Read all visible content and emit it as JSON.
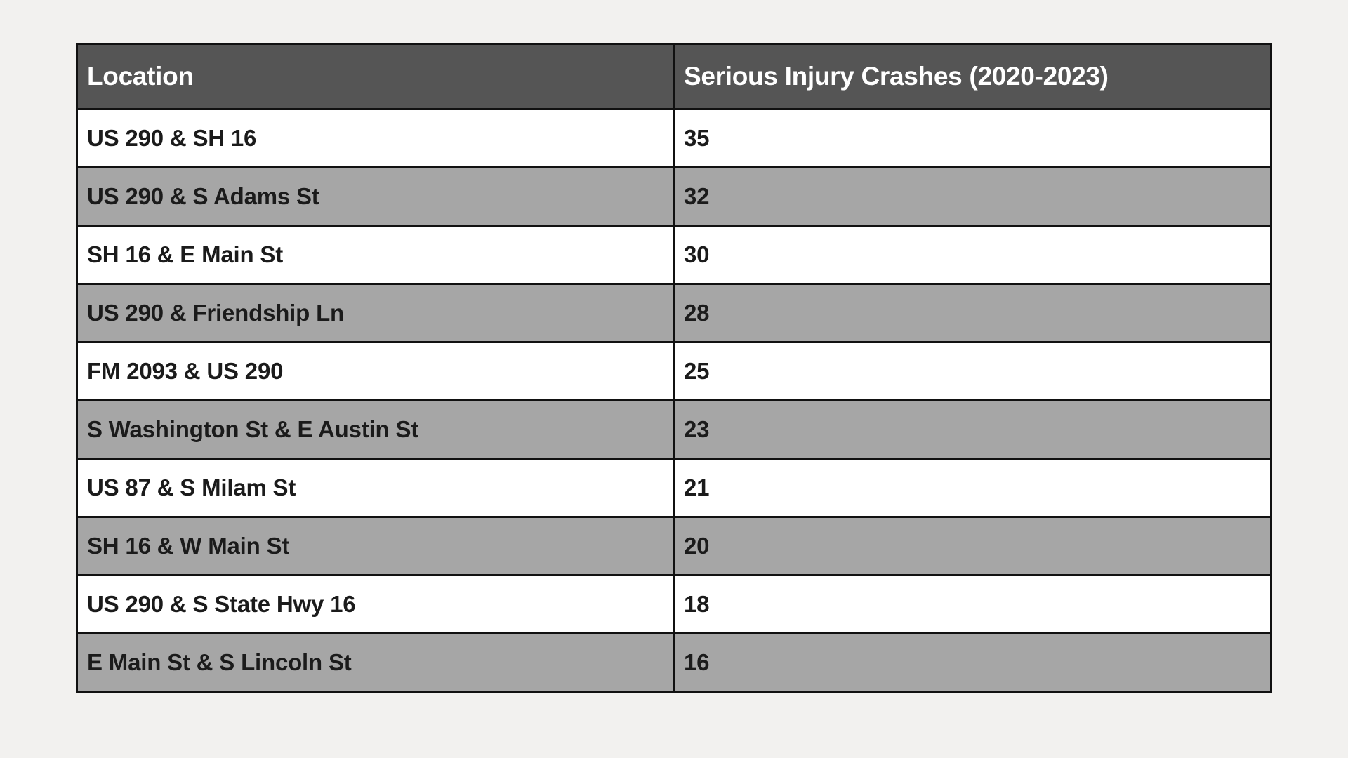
{
  "table": {
    "headers": {
      "location": "Location",
      "crashes": "Serious Injury Crashes (2020-2023)"
    },
    "rows": [
      {
        "location": "US 290 & SH 16",
        "crashes": "35"
      },
      {
        "location": "US 290 & S Adams St",
        "crashes": "32"
      },
      {
        "location": "SH 16 & E Main St",
        "crashes": "30"
      },
      {
        "location": "US 290 & Friendship Ln",
        "crashes": "28"
      },
      {
        "location": "FM 2093 & US 290",
        "crashes": "25"
      },
      {
        "location": "S Washington St & E Austin St",
        "crashes": "23"
      },
      {
        "location": "US 87 & S Milam St",
        "crashes": "21"
      },
      {
        "location": "SH 16 & W Main St",
        "crashes": "20"
      },
      {
        "location": "US 290 & S State Hwy 16",
        "crashes": "18"
      },
      {
        "location": "E Main St & S Lincoln St",
        "crashes": "16"
      }
    ],
    "colors": {
      "page_background": "#f2f1ef",
      "header_background": "#555555",
      "header_text": "#ffffff",
      "row_odd_background": "#ffffff",
      "row_even_background": "#a6a6a6",
      "border": "#111111"
    }
  },
  "chart_data": {
    "type": "table",
    "columns": [
      "Location",
      "Serious Injury Crashes (2020-2023)"
    ],
    "rows": [
      [
        "US 290 & SH 16",
        35
      ],
      [
        "US 290 & S Adams St",
        32
      ],
      [
        "SH 16 & E Main St",
        30
      ],
      [
        "US 290 & Friendship Ln",
        28
      ],
      [
        "FM 2093 & US 290",
        25
      ],
      [
        "S Washington St & E Austin St",
        23
      ],
      [
        "US 87 & S Milam St",
        21
      ],
      [
        "SH 16 & W Main St",
        20
      ],
      [
        "US 290 & S State Hwy 16",
        18
      ],
      [
        "E Main St & S Lincoln St",
        16
      ]
    ]
  }
}
